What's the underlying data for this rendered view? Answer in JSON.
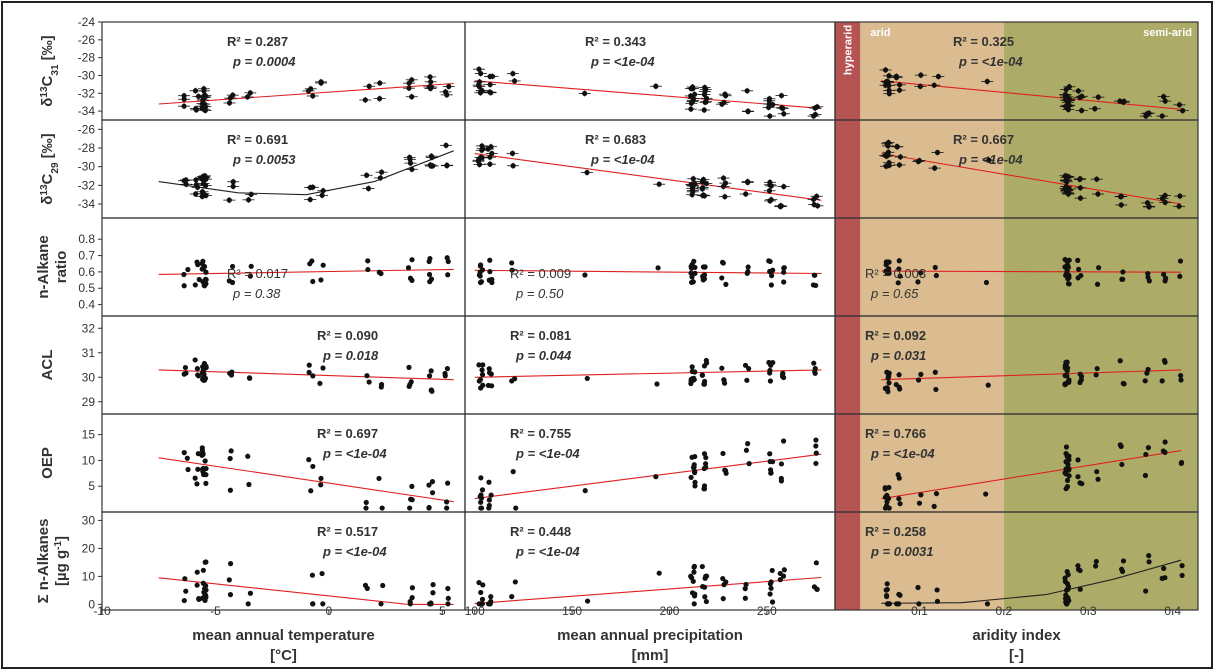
{
  "figure": {
    "columns": [
      {
        "id": "temp",
        "xlabel_line1": "mean annual temperature",
        "xlabel_line2": "[°C]",
        "xlim": [
          -10,
          6
        ],
        "ticks": [
          -10,
          -5,
          0,
          5
        ],
        "tick_labels": [
          "-10",
          "-5",
          "0",
          "5"
        ]
      },
      {
        "id": "precip",
        "xlabel_line1": "mean annual precipitation",
        "xlabel_line2": "[mm]",
        "xlim": [
          95,
          285
        ],
        "ticks": [
          100,
          150,
          200,
          250
        ],
        "tick_labels": [
          "100",
          "150",
          "200",
          "250"
        ]
      },
      {
        "id": "aridity",
        "xlabel_line1": "aridity index",
        "xlabel_line2": "[-]",
        "xlim": [
          0,
          0.43
        ],
        "ticks": [
          0.1,
          0.2,
          0.3,
          0.4
        ],
        "tick_labels": [
          "0.1",
          "0.2",
          "0.3",
          "0.4"
        ]
      }
    ],
    "regions": [
      {
        "label": "hyperarid",
        "from": 0,
        "to": 0.03,
        "color": "#b24a4a"
      },
      {
        "label": "arid",
        "from": 0.03,
        "to": 0.2,
        "color": "#d8b88a"
      },
      {
        "label": "semi-arid",
        "from": 0.2,
        "to": 0.43,
        "color": "#a8a860"
      }
    ]
  },
  "chart_data": [
    {
      "type": "scatter",
      "row": 0,
      "ylabel": "δ13C31 [‰]",
      "ylabel_main": "δ",
      "ylabel_sup": "13",
      "ylabel_c": "C",
      "ylabel_sub": "31",
      "ylabel_unit": " [‰]",
      "ylim": [
        -35,
        -24
      ],
      "yticks": [
        -34,
        -32,
        -30,
        -28,
        -26,
        -24
      ],
      "ytick_labels": [
        "-34",
        "-32",
        "-30",
        "-28",
        "-26",
        "-24"
      ],
      "panels": [
        {
          "r2": "R² = 0.287",
          "p": "p = 0.0004",
          "bold": true,
          "fit": "linear",
          "line": [
            [
              -7.5,
              -33.2
            ],
            [
              5.5,
              -30.9
            ]
          ]
        },
        {
          "r2": "R² = 0.343",
          "p": "p = <1e-04",
          "bold": true,
          "fit": "linear",
          "line": [
            [
              100,
              -30.6
            ],
            [
              278,
              -33.7
            ]
          ]
        },
        {
          "r2": "R² = 0.325",
          "p": "p = <1e-04",
          "bold": true,
          "fit": "linear",
          "line": [
            [
              0.055,
              -30.6
            ],
            [
              0.41,
              -33.8
            ]
          ]
        }
      ]
    },
    {
      "type": "scatter",
      "row": 1,
      "ylabel": "δ13C29 [‰]",
      "ylabel_main": "δ",
      "ylabel_sup": "13",
      "ylabel_c": "C",
      "ylabel_sub": "29",
      "ylabel_unit": " [‰]",
      "ylim": [
        -35.5,
        -25
      ],
      "yticks": [
        -34,
        -32,
        -30,
        -28,
        -26
      ],
      "ytick_labels": [
        "-34",
        "-32",
        "-30",
        "-28",
        "-26"
      ],
      "panels": [
        {
          "r2": "R² = 0.691",
          "p": "p = 0.0053",
          "bold": true,
          "fit": "quadratic",
          "line": [
            [
              -7.5,
              -31.6
            ],
            [
              -4,
              -32.8
            ],
            [
              -1,
              -33.0
            ],
            [
              2,
              -31.6
            ],
            [
              5.5,
              -28.3
            ]
          ]
        },
        {
          "r2": "R² = 0.683",
          "p": "p = <1e-04",
          "bold": true,
          "fit": "linear",
          "line": [
            [
              100,
              -28.6
            ],
            [
              278,
              -33.6
            ]
          ]
        },
        {
          "r2": "R² = 0.667",
          "p": "p = <1e-04",
          "bold": true,
          "fit": "linear",
          "line": [
            [
              0.055,
              -28.6
            ],
            [
              0.41,
              -34.0
            ]
          ]
        }
      ]
    },
    {
      "type": "scatter",
      "row": 2,
      "ylabel": "n-Alkane ratio",
      "ylabel_l1": "n-Alkane",
      "ylabel_l2": "ratio",
      "ylim": [
        0.33,
        0.93
      ],
      "yticks": [
        0.4,
        0.5,
        0.6,
        0.7,
        0.8
      ],
      "ytick_labels": [
        "0.4",
        "0.5",
        "0.6",
        "0.7",
        "0.8"
      ],
      "panels": [
        {
          "r2": "R² = 0.017",
          "p": "p = 0.38",
          "bold": false,
          "fit": "linear",
          "line": [
            [
              -7.5,
              0.585
            ],
            [
              5.5,
              0.615
            ]
          ]
        },
        {
          "r2": "R² = 0.009",
          "p": "p = 0.50",
          "bold": false,
          "fit": "linear",
          "line": [
            [
              100,
              0.61
            ],
            [
              278,
              0.59
            ]
          ]
        },
        {
          "r2": "R² = 0.003",
          "p": "p = 0.65",
          "bold": false,
          "fit": "linear",
          "line": [
            [
              0.055,
              0.605
            ],
            [
              0.41,
              0.598
            ]
          ]
        }
      ]
    },
    {
      "type": "scatter",
      "row": 3,
      "ylabel": "ACL",
      "ylim": [
        28.5,
        32.5
      ],
      "yticks": [
        29,
        30,
        31,
        32
      ],
      "ytick_labels": [
        "29",
        "30",
        "31",
        "32"
      ],
      "panels": [
        {
          "r2": "R² = 0.090",
          "p": "p = 0.018",
          "bold": true,
          "fit": "linear",
          "line": [
            [
              -7.5,
              30.3
            ],
            [
              5.5,
              29.9
            ]
          ]
        },
        {
          "r2": "R² = 0.081",
          "p": "p = 0.044",
          "bold": true,
          "fit": "linear",
          "line": [
            [
              100,
              30.0
            ],
            [
              278,
              30.3
            ]
          ]
        },
        {
          "r2": "R² = 0.092",
          "p": "p = 0.031",
          "bold": true,
          "fit": "linear",
          "line": [
            [
              0.055,
              29.9
            ],
            [
              0.41,
              30.3
            ]
          ]
        }
      ]
    },
    {
      "type": "scatter",
      "row": 4,
      "ylabel": "OEP",
      "ylim": [
        0,
        19
      ],
      "yticks": [
        5,
        10,
        15
      ],
      "ytick_labels": [
        "5",
        "10",
        "15"
      ],
      "panels": [
        {
          "r2": "R² = 0.697",
          "p": "p = <1e-04",
          "bold": true,
          "fit": "linear",
          "line": [
            [
              -7.5,
              10.5
            ],
            [
              5.5,
              2.0
            ]
          ]
        },
        {
          "r2": "R² = 0.755",
          "p": "p = <1e-04",
          "bold": true,
          "fit": "linear",
          "line": [
            [
              100,
              2.6
            ],
            [
              278,
              11.2
            ]
          ]
        },
        {
          "r2": "R² = 0.766",
          "p": "p = <1e-04",
          "bold": true,
          "fit": "linear",
          "line": [
            [
              0.055,
              2.6
            ],
            [
              0.41,
              11.9
            ]
          ]
        }
      ]
    },
    {
      "type": "scatter",
      "row": 5,
      "ylabel": "Σ n-Alkanes [µg g-1]",
      "ylabel_l1": "Σ n-Alkanes",
      "ylabel_l2": "[µg g",
      "ylabel_sup2": "-1",
      "ylabel_end": "]",
      "ylim": [
        -2,
        33
      ],
      "yticks": [
        0,
        10,
        20,
        30
      ],
      "ytick_labels": [
        "0",
        "10",
        "20",
        "30"
      ],
      "panels": [
        {
          "r2": "R² = 0.517",
          "p": "p = <1e-04",
          "bold": true,
          "fit": "linear",
          "line": [
            [
              -7.5,
              9.5
            ],
            [
              3.5,
              0.0
            ],
            [
              5.5,
              0.0
            ]
          ]
        },
        {
          "r2": "R² = 0.448",
          "p": "p = <1e-04",
          "bold": true,
          "fit": "linear",
          "line": [
            [
              100,
              0.3
            ],
            [
              278,
              9.6
            ]
          ]
        },
        {
          "r2": "R² = 0.258",
          "p": "p = 0.0031",
          "bold": true,
          "fit": "quadratic",
          "line": [
            [
              0.055,
              0.4
            ],
            [
              0.15,
              0.6
            ],
            [
              0.25,
              3.5
            ],
            [
              0.33,
              9.0
            ],
            [
              0.41,
              15.8
            ]
          ]
        }
      ]
    }
  ]
}
